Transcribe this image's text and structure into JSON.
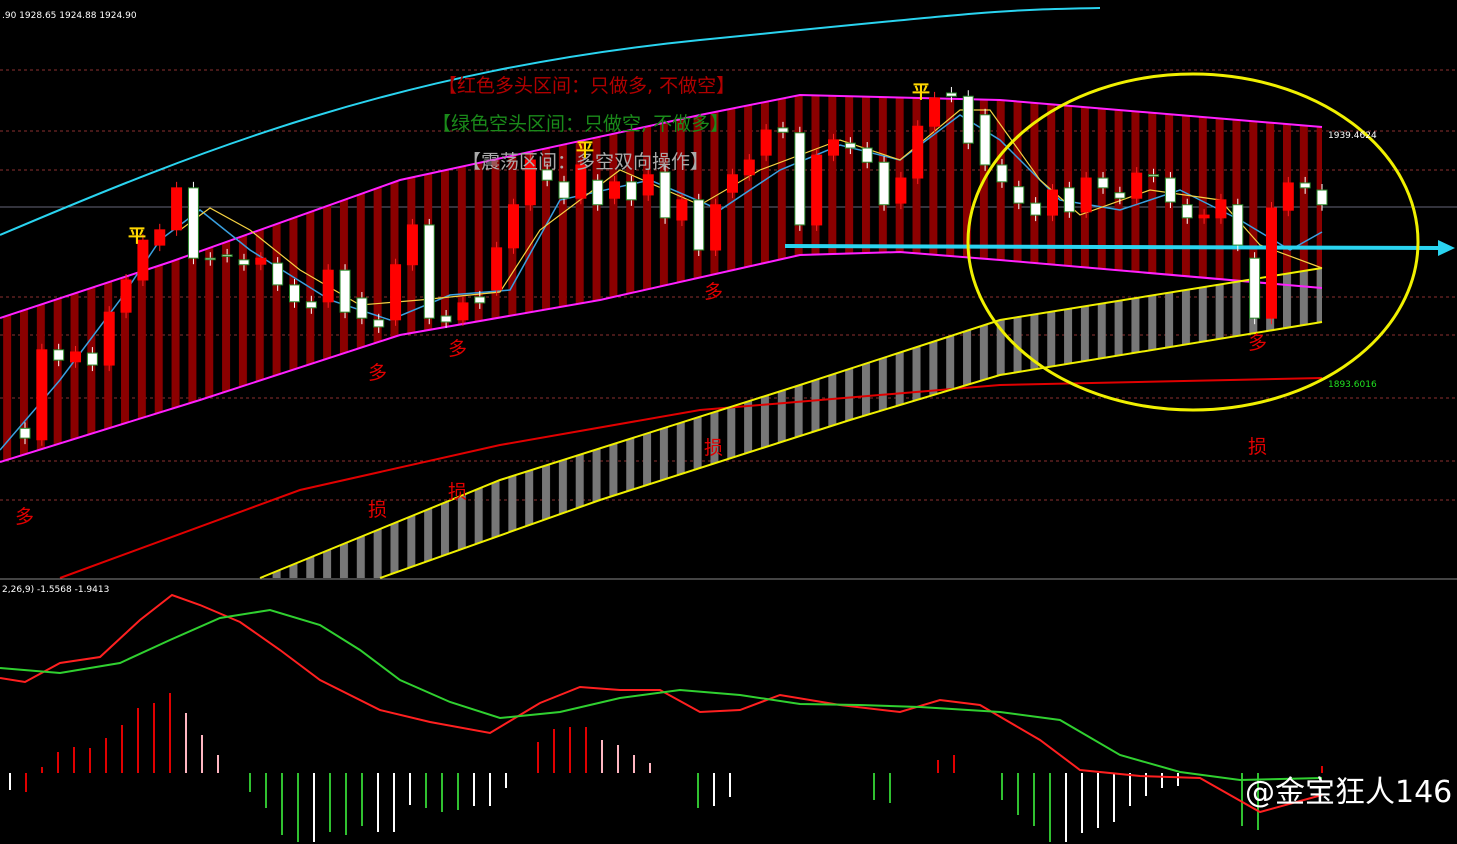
{
  "header": ".90 1928.65 1924.88 1924.90",
  "annotations": {
    "bull_zone": "【红色多头区间：只做多, 不做空】",
    "bear_zone": "【绿色空头区间：只做空, 不做多】",
    "range_zone": "【震荡区间：多空双向操作】",
    "flat": [
      "平",
      "平",
      "平"
    ],
    "long": [
      "多",
      "多",
      "多",
      "多",
      "多"
    ],
    "stop": [
      "损",
      "损",
      "损",
      "损"
    ]
  },
  "price_labels": [
    "1939.4624",
    "1893.6016"
  ],
  "macd_header": "2,26,9) -1.5568 -1.9413",
  "watermark": "@金宝狂人146",
  "chart_data": {
    "type": "candlestick",
    "ylim": [
      1857.85,
      1963.85
    ],
    "candles": [
      [
        1885.3,
        1883.5
      ],
      [
        1883.2,
        1899.7
      ],
      [
        1899.7,
        1897.8
      ],
      [
        1897.5,
        1899.3
      ],
      [
        1899.1,
        1896.9
      ],
      [
        1896.9,
        1906.6
      ],
      [
        1906.6,
        1912.5
      ],
      [
        1912.5,
        1919.8
      ],
      [
        1918.9,
        1921.7
      ],
      [
        1921.7,
        1929.4
      ],
      [
        1929.4,
        1916.5
      ],
      [
        1916.5,
        1916.4
      ],
      [
        1917.1,
        1917.0
      ],
      [
        1916.2,
        1915.3
      ],
      [
        1915.4,
        1916.5
      ],
      [
        1915.6,
        1911.6
      ],
      [
        1911.6,
        1908.5
      ],
      [
        1908.5,
        1907.4
      ],
      [
        1908.5,
        1914.3
      ],
      [
        1914.3,
        1906.6
      ],
      [
        1909.2,
        1905.5
      ],
      [
        1905.2,
        1903.9
      ],
      [
        1905.2,
        1915.3
      ],
      [
        1915.3,
        1922.6
      ],
      [
        1922.6,
        1905.5
      ],
      [
        1905.9,
        1904.8
      ],
      [
        1905.2,
        1908.3
      ],
      [
        1909.4,
        1908.3
      ],
      [
        1910.7,
        1918.4
      ],
      [
        1918.4,
        1926.3
      ],
      [
        1926.3,
        1934.5
      ],
      [
        1932.7,
        1930.8
      ],
      [
        1930.5,
        1927.5
      ],
      [
        1927.5,
        1933.6
      ],
      [
        1930.8,
        1926.3
      ],
      [
        1927.5,
        1930.5
      ],
      [
        1930.5,
        1927.2
      ],
      [
        1928.1,
        1931.8
      ],
      [
        1932.3,
        1923.9
      ],
      [
        1923.5,
        1927.2
      ],
      [
        1927.2,
        1918.0
      ],
      [
        1918.0,
        1926.3
      ],
      [
        1928.6,
        1931.8
      ],
      [
        1931.8,
        1934.5
      ],
      [
        1935.4,
        1940.0
      ],
      [
        1940.4,
        1939.6
      ],
      [
        1939.5,
        1922.6
      ],
      [
        1922.6,
        1935.4
      ],
      [
        1935.4,
        1938.2
      ],
      [
        1937.6,
        1936.7
      ],
      [
        1936.7,
        1934.1
      ],
      [
        1934.1,
        1926.3
      ],
      [
        1926.6,
        1931.2
      ],
      [
        1931.2,
        1940.7
      ],
      [
        1940.7,
        1945.9
      ],
      [
        1946.8,
        1946.2
      ],
      [
        1946.2,
        1937.6
      ],
      [
        1942.8,
        1933.6
      ],
      [
        1933.6,
        1930.5
      ],
      [
        1929.6,
        1926.6
      ],
      [
        1926.6,
        1924.4
      ],
      [
        1924.4,
        1929.0
      ],
      [
        1929.4,
        1925.0
      ],
      [
        1925.0,
        1931.2
      ],
      [
        1931.2,
        1929.4
      ],
      [
        1928.5,
        1927.5
      ],
      [
        1927.5,
        1932.1
      ],
      [
        1931.8,
        1931.6
      ],
      [
        1931.2,
        1926.8
      ],
      [
        1926.3,
        1923.9
      ],
      [
        1923.9,
        1924.4
      ],
      [
        1923.9,
        1927.2
      ],
      [
        1926.3,
        1918.9
      ],
      [
        1916.5,
        1905.5
      ],
      [
        1905.5,
        1925.7
      ],
      [
        1925.3,
        1930.3
      ],
      [
        1930.3,
        1929.4
      ],
      [
        1929.0,
        1926.3
      ]
    ]
  }
}
